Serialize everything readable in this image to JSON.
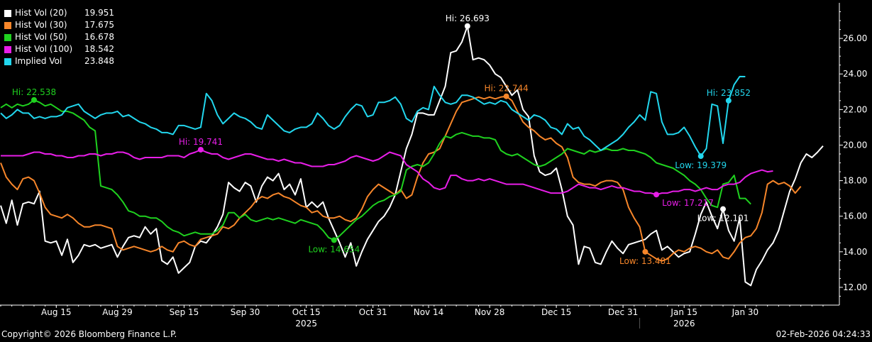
{
  "legend": [
    {
      "name": "Hist Vol (20)",
      "value": "19.951",
      "color": "#ffffff"
    },
    {
      "name": "Hist Vol (30)",
      "value": "17.675",
      "color": "#f7862a"
    },
    {
      "name": "Hist Vol (50)",
      "value": "16.678",
      "color": "#1fd11f"
    },
    {
      "name": "Hist Vol (100)",
      "value": "18.542",
      "color": "#e81ee8"
    },
    {
      "name": "Implied Vol",
      "value": "23.848",
      "color": "#22d7ee"
    }
  ],
  "footer": {
    "copyright": "Copyright© 2026 Bloomberg Finance L.P.",
    "timestamp": "02-Feb-2026 04:24:33"
  },
  "chart_data": {
    "type": "line",
    "ylim": [
      11,
      28
    ],
    "yticks": [
      12,
      14,
      16,
      18,
      20,
      22,
      24,
      26
    ],
    "x_labels": [
      "Aug 15",
      "Aug 29",
      "Sep 15",
      "Sep 30",
      "Oct 15",
      "Oct 31",
      "Nov 14",
      "Nov 28",
      "Dec 15",
      "Dec 31",
      "Jan 15",
      "Jan 30"
    ],
    "x_label_index": [
      10,
      21,
      33,
      44,
      55,
      67,
      77,
      88,
      100,
      112,
      123,
      134
    ],
    "year_labels": [
      {
        "label": "2025",
        "index": 55
      },
      {
        "label": "2026",
        "index": 123
      }
    ],
    "year_separator_index": 115,
    "series": [
      {
        "name": "Hist Vol (20)",
        "color": "#ffffff",
        "values": [
          16.6,
          15.6,
          16.9,
          15.5,
          16.7,
          16.8,
          16.7,
          17.4,
          14.6,
          14.5,
          14.6,
          13.8,
          14.7,
          13.4,
          13.8,
          14.4,
          14.3,
          14.4,
          14.2,
          14.3,
          14.4,
          13.7,
          14.3,
          14.8,
          14.9,
          14.8,
          15.4,
          15.0,
          15.3,
          13.5,
          13.3,
          13.7,
          12.8,
          13.1,
          13.4,
          14.3,
          14.6,
          14.5,
          14.9,
          15.4,
          16.1,
          17.9,
          17.6,
          17.4,
          17.9,
          17.7,
          16.8,
          17.7,
          18.2,
          18.0,
          18.4,
          17.5,
          17.8,
          17.2,
          18.1,
          16.5,
          16.8,
          16.5,
          16.8,
          15.9,
          15.2,
          14.5,
          13.7,
          14.5,
          13.2,
          14.0,
          14.7,
          15.2,
          15.7,
          16.0,
          16.5,
          17.2,
          18.5,
          19.8,
          20.6,
          21.8,
          21.8,
          21.7,
          21.7,
          22.5,
          23.3,
          25.2,
          25.3,
          25.8,
          26.693,
          24.8,
          24.9,
          24.8,
          24.5,
          24.0,
          23.8,
          23.3,
          22.8,
          23.1,
          22.0,
          21.6,
          19.4,
          18.5,
          18.3,
          18.4,
          18.7,
          17.5,
          16.0,
          15.5,
          13.3,
          14.3,
          14.2,
          13.4,
          13.3,
          14.0,
          14.6,
          14.2,
          13.9,
          14.4,
          14.5,
          14.6,
          14.7,
          15.0,
          15.2,
          14.1,
          14.3,
          14.0,
          13.7,
          13.9,
          14.0,
          15.0,
          16.1,
          16.8,
          16.0,
          15.3,
          16.4,
          15.2,
          14.6,
          15.9,
          12.3,
          12.101,
          13.0,
          13.5,
          14.1,
          14.5,
          15.2,
          16.3,
          17.4,
          18.1,
          19.0,
          19.5,
          19.3,
          19.6,
          19.951
        ]
      },
      {
        "name": "Hist Vol (30)",
        "color": "#f7862a",
        "values": [
          19.0,
          18.2,
          17.8,
          17.5,
          18.1,
          18.2,
          18.0,
          17.3,
          16.5,
          16.1,
          16.0,
          15.9,
          16.1,
          15.9,
          15.6,
          15.4,
          15.4,
          15.5,
          15.5,
          15.4,
          15.3,
          14.3,
          14.1,
          14.2,
          14.3,
          14.2,
          14.1,
          14.0,
          14.1,
          14.3,
          14.1,
          14.0,
          14.5,
          14.6,
          14.4,
          14.3,
          14.7,
          14.8,
          14.9,
          15.0,
          15.4,
          15.3,
          15.5,
          15.9,
          16.2,
          16.5,
          16.9,
          17.1,
          17.0,
          17.2,
          17.3,
          17.1,
          17.0,
          16.8,
          16.6,
          16.5,
          16.2,
          16.3,
          16.0,
          15.9,
          15.9,
          16.0,
          15.8,
          15.7,
          15.9,
          16.4,
          17.1,
          17.5,
          17.8,
          17.6,
          17.4,
          17.2,
          17.5,
          17.0,
          17.2,
          18.2,
          19.0,
          19.5,
          19.6,
          19.8,
          20.5,
          21.2,
          21.9,
          22.4,
          22.5,
          22.6,
          22.7,
          22.6,
          22.7,
          22.6,
          22.7,
          22.744,
          22.5,
          21.9,
          21.3,
          21.0,
          20.8,
          20.5,
          20.3,
          20.4,
          20.1,
          19.9,
          19.3,
          18.2,
          17.9,
          17.8,
          17.8,
          17.7,
          17.9,
          18.0,
          18.0,
          17.9,
          17.5,
          16.5,
          15.9,
          15.4,
          14.0,
          13.8,
          13.6,
          13.481,
          13.6,
          13.9,
          14.1,
          14.0,
          14.2,
          14.3,
          14.2,
          14.0,
          13.9,
          14.1,
          13.7,
          13.6,
          14.0,
          14.5,
          14.8,
          14.9,
          15.3,
          16.2,
          17.8,
          18.0,
          17.8,
          17.9,
          17.7,
          17.3,
          17.675
        ]
      },
      {
        "name": "Hist Vol (50)",
        "color": "#1fd11f",
        "values": [
          22.1,
          22.3,
          22.1,
          22.3,
          22.2,
          22.3,
          22.538,
          22.4,
          22.2,
          22.3,
          22.1,
          21.9,
          21.9,
          21.8,
          21.6,
          21.4,
          21.0,
          20.8,
          17.7,
          17.6,
          17.5,
          17.2,
          16.8,
          16.3,
          16.2,
          16.0,
          16.0,
          15.9,
          15.9,
          15.7,
          15.4,
          15.2,
          15.1,
          14.9,
          15.0,
          15.1,
          15.0,
          15.0,
          15.0,
          15.2,
          15.5,
          16.2,
          16.2,
          15.9,
          16.1,
          15.8,
          15.7,
          15.8,
          15.9,
          15.8,
          15.9,
          15.8,
          15.7,
          15.6,
          15.8,
          15.7,
          15.6,
          15.5,
          15.2,
          14.8,
          14.654,
          14.9,
          15.2,
          15.5,
          15.8,
          16.0,
          16.3,
          16.6,
          16.8,
          16.9,
          17.1,
          17.2,
          17.4,
          18.6,
          18.8,
          18.9,
          18.8,
          19.0,
          19.5,
          20.1,
          20.5,
          20.4,
          20.6,
          20.7,
          20.6,
          20.5,
          20.5,
          20.4,
          20.4,
          20.3,
          19.7,
          19.5,
          19.4,
          19.5,
          19.3,
          19.1,
          18.9,
          18.8,
          18.9,
          19.1,
          19.3,
          19.5,
          19.8,
          19.7,
          19.6,
          19.5,
          19.7,
          19.6,
          19.7,
          19.8,
          19.7,
          19.7,
          19.8,
          19.7,
          19.7,
          19.6,
          19.5,
          19.3,
          19.0,
          18.9,
          18.8,
          18.7,
          18.5,
          18.3,
          18.0,
          17.8,
          17.5,
          17.0,
          16.6,
          16.5,
          17.8,
          17.9,
          18.3,
          17.0,
          17.0,
          16.678
        ]
      },
      {
        "name": "Hist Vol (100)",
        "color": "#e81ee8",
        "values": [
          19.4,
          19.4,
          19.4,
          19.4,
          19.4,
          19.5,
          19.6,
          19.6,
          19.5,
          19.5,
          19.4,
          19.4,
          19.3,
          19.3,
          19.4,
          19.4,
          19.5,
          19.5,
          19.4,
          19.5,
          19.5,
          19.6,
          19.6,
          19.5,
          19.3,
          19.2,
          19.3,
          19.3,
          19.3,
          19.3,
          19.4,
          19.4,
          19.4,
          19.3,
          19.5,
          19.6,
          19.741,
          19.6,
          19.5,
          19.5,
          19.3,
          19.2,
          19.3,
          19.4,
          19.5,
          19.5,
          19.4,
          19.3,
          19.2,
          19.2,
          19.1,
          19.2,
          19.1,
          19.0,
          19.0,
          18.9,
          18.8,
          18.8,
          18.8,
          18.9,
          18.9,
          19.0,
          19.1,
          19.3,
          19.4,
          19.3,
          19.2,
          19.1,
          19.2,
          19.4,
          19.6,
          19.5,
          19.4,
          18.9,
          18.7,
          18.5,
          18.1,
          17.9,
          17.6,
          17.5,
          17.6,
          18.3,
          18.3,
          18.1,
          18.0,
          18.0,
          18.1,
          18.0,
          18.1,
          18.0,
          17.9,
          17.8,
          17.8,
          17.8,
          17.8,
          17.7,
          17.6,
          17.5,
          17.4,
          17.3,
          17.3,
          17.3,
          17.4,
          17.6,
          17.8,
          17.7,
          17.6,
          17.6,
          17.5,
          17.6,
          17.7,
          17.6,
          17.6,
          17.5,
          17.4,
          17.4,
          17.3,
          17.3,
          17.217,
          17.3,
          17.3,
          17.4,
          17.4,
          17.5,
          17.5,
          17.4,
          17.5,
          17.6,
          17.5,
          17.5,
          17.7,
          17.8,
          17.8,
          17.9,
          18.2,
          18.4,
          18.5,
          18.6,
          18.5,
          18.542
        ]
      },
      {
        "name": "Implied Vol",
        "color": "#22d7ee",
        "values": [
          21.8,
          21.5,
          21.7,
          22.0,
          21.8,
          21.8,
          21.5,
          21.6,
          21.5,
          21.6,
          21.6,
          21.7,
          22.1,
          22.2,
          22.3,
          21.9,
          21.7,
          21.5,
          21.7,
          21.8,
          21.8,
          21.9,
          21.6,
          21.7,
          21.5,
          21.3,
          21.2,
          21.0,
          20.9,
          20.7,
          20.7,
          20.6,
          21.1,
          21.1,
          21.0,
          20.9,
          21.0,
          22.9,
          22.5,
          21.7,
          21.2,
          21.5,
          21.8,
          21.6,
          21.5,
          21.3,
          21.0,
          20.9,
          21.7,
          21.4,
          21.1,
          20.8,
          20.7,
          20.9,
          21.0,
          21.0,
          21.2,
          21.8,
          21.5,
          21.1,
          20.9,
          21.1,
          21.6,
          22.0,
          22.3,
          22.2,
          21.6,
          21.7,
          22.4,
          22.4,
          22.5,
          22.7,
          22.3,
          21.5,
          21.3,
          21.9,
          22.1,
          22.0,
          23.3,
          22.8,
          22.4,
          22.3,
          22.4,
          22.8,
          22.8,
          22.7,
          22.5,
          22.3,
          22.4,
          22.3,
          22.5,
          22.4,
          22.0,
          21.8,
          21.6,
          21.4,
          21.7,
          21.6,
          21.4,
          21.0,
          20.9,
          20.6,
          21.2,
          20.9,
          21.0,
          20.5,
          20.3,
          20.0,
          19.7,
          19.9,
          20.1,
          20.3,
          20.6,
          21.0,
          21.3,
          21.7,
          21.4,
          23.0,
          22.9,
          21.3,
          20.6,
          20.6,
          20.7,
          21.0,
          20.5,
          19.9,
          19.379,
          19.8,
          22.3,
          22.2,
          20.1,
          22.5,
          23.4,
          23.852,
          23.848
        ]
      }
    ],
    "annotations": [
      {
        "series": 0,
        "index": 84,
        "label": "Hi: 26.693",
        "pos": "above"
      },
      {
        "series": 0,
        "index": 130,
        "label": "Low: 12.101",
        "pos": "below"
      },
      {
        "series": 1,
        "index": 91,
        "label": "Hi: 22.744",
        "pos": "above"
      },
      {
        "series": 1,
        "index": 116,
        "label": "Low: 13.481",
        "pos": "below"
      },
      {
        "series": 2,
        "index": 6,
        "label": "Hi: 22.538",
        "pos": "above"
      },
      {
        "series": 2,
        "index": 60,
        "label": "Low: 14.654",
        "pos": "below"
      },
      {
        "series": 3,
        "index": 36,
        "label": "Hi: 19.741",
        "pos": "above"
      },
      {
        "series": 3,
        "index": 118,
        "label": "Low: 17.217",
        "pos": "right"
      },
      {
        "series": 4,
        "index": 126,
        "label": "Low: 19.379",
        "pos": "below"
      },
      {
        "series": 4,
        "index": 131,
        "label": "Hi: 23.852",
        "pos": "above"
      }
    ]
  }
}
